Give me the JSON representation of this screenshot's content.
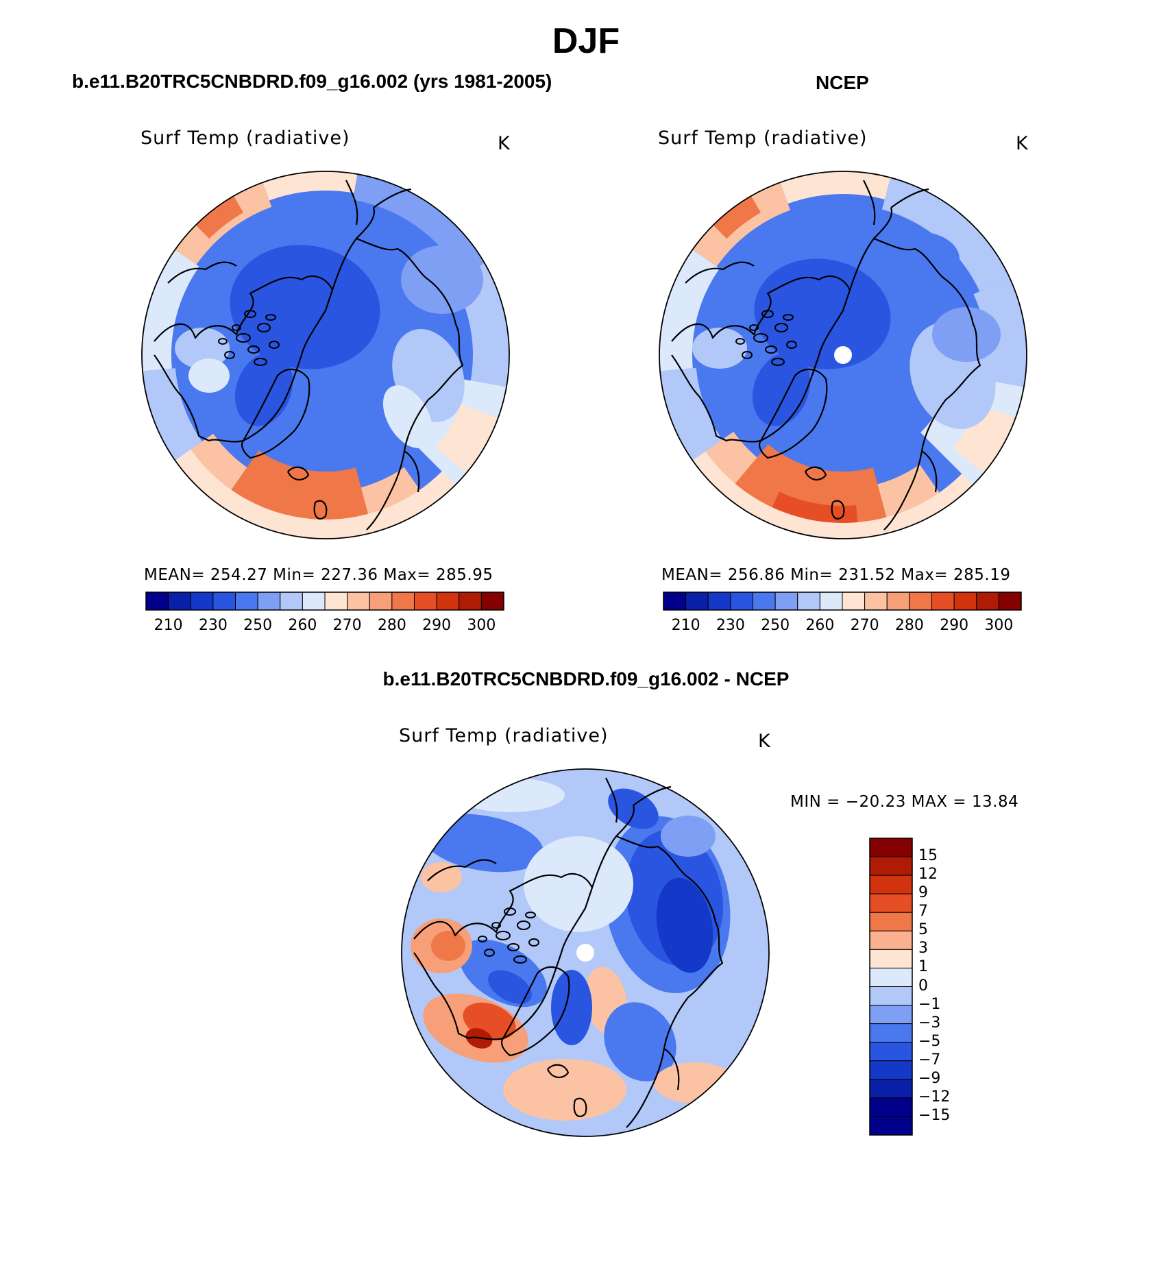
{
  "page": {
    "title": "DJF",
    "diff_title": "b.e11.B20TRC5CNBDRD.f09_g16.002 - NCEP"
  },
  "panels": [
    {
      "subtitle": "b.e11.B20TRC5CNBDRD.f09_g16.002 (yrs 1981-2005)",
      "variable": "Surf Temp (radiative)",
      "units": "K",
      "stats": "MEAN= 254.27   Min= 227.36   Max= 285.95",
      "field": "model"
    },
    {
      "subtitle": "NCEP",
      "variable": "Surf Temp (radiative)",
      "units": "K",
      "stats": "MEAN= 256.86   Min= 231.52   Max= 285.19",
      "field": "obs"
    },
    {
      "subtitle": "",
      "variable": "Surf Temp (radiative)",
      "units": "K",
      "stats": "MIN = −20.23 MAX =   13.84",
      "field": "diff"
    }
  ],
  "colorbar_abs": {
    "colors": [
      "#00008b",
      "#0a1fa8",
      "#1438c8",
      "#2a55e0",
      "#4a78ee",
      "#7e9ff3",
      "#b1c8f8",
      "#dce9fb",
      "#fde4d3",
      "#fbc3a4",
      "#f69f78",
      "#f07848",
      "#e64f26",
      "#d1330e",
      "#b01b05",
      "#850000"
    ],
    "labels": [
      "210",
      "230",
      "250",
      "260",
      "270",
      "280",
      "290",
      "300"
    ]
  },
  "colorbar_diff": {
    "colors": [
      "#850000",
      "#b01b05",
      "#d1330e",
      "#e64f26",
      "#f07848",
      "#fbb18f",
      "#fde4d3",
      "#dce9fb",
      "#b1c8f8",
      "#7e9ff3",
      "#4a78ee",
      "#2a55e0",
      "#1438c8",
      "#0a1fa8",
      "#00008b",
      "#00008b"
    ],
    "labels": [
      "15",
      "12",
      "9",
      "7",
      "5",
      "3",
      "1",
      "0",
      "−1",
      "−3",
      "−5",
      "−7",
      "−9",
      "−12",
      "−15"
    ]
  }
}
